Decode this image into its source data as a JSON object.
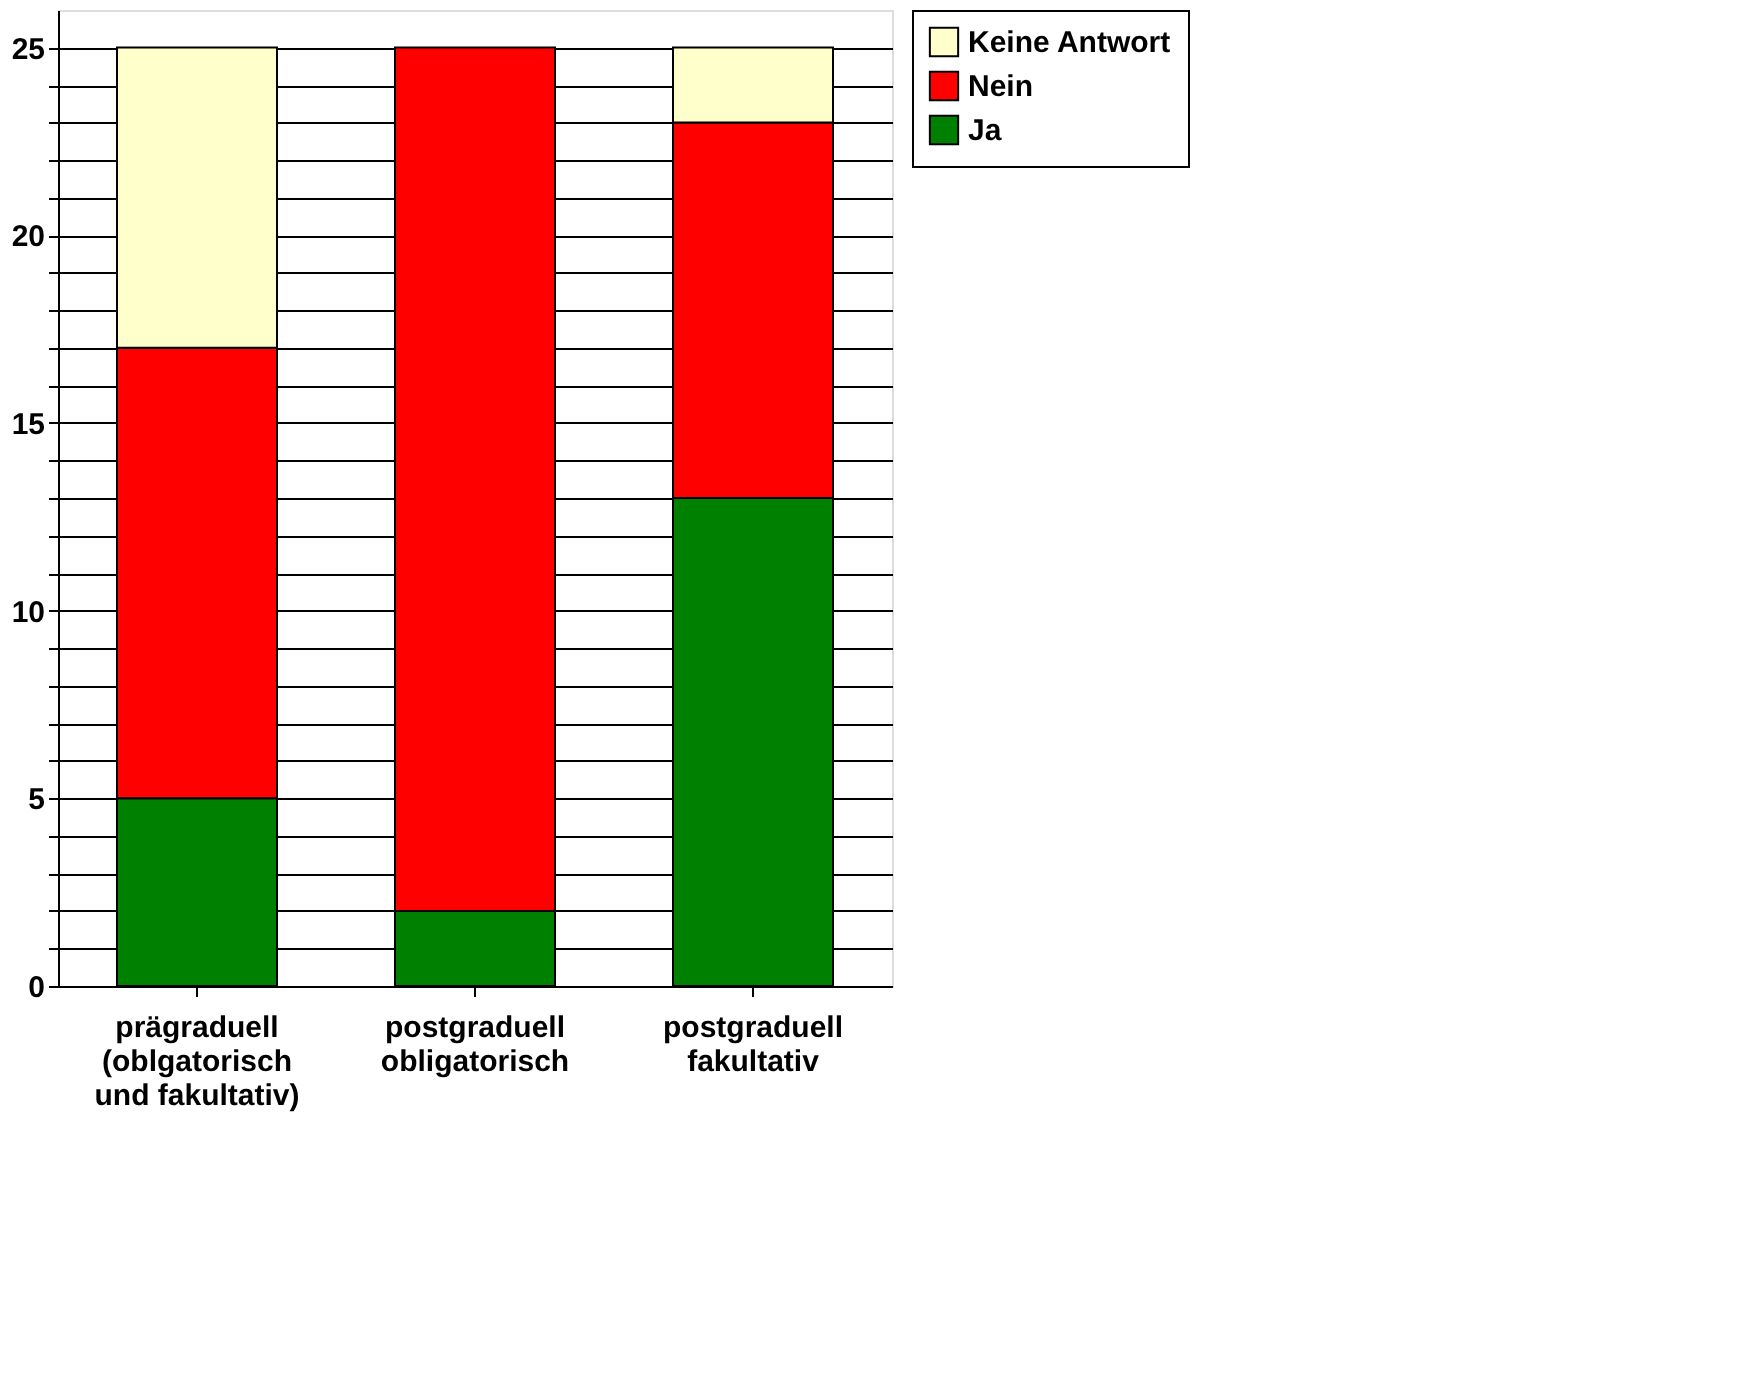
{
  "chart_data": {
    "type": "bar",
    "stacked": true,
    "categories": [
      "prägraduell (oblgatorisch und fakultativ)",
      "postgraduell obligatorisch",
      "postgraduell fakultativ"
    ],
    "series": [
      {
        "name": "Ja",
        "color": "#008000",
        "values": [
          5,
          2,
          13
        ]
      },
      {
        "name": "Nein",
        "color": "#ff0000",
        "values": [
          12,
          23,
          10
        ]
      },
      {
        "name": "Keine Antwort",
        "color": "#ffffcc",
        "values": [
          8,
          0,
          2
        ]
      }
    ],
    "ylim": [
      0,
      26
    ],
    "yticks": [
      0,
      {
        "value": 1,
        "label": null
      },
      {
        "value": 2,
        "label": null
      },
      {
        "value": 3,
        "label": null
      },
      {
        "value": 4,
        "label": null
      },
      5,
      {
        "value": 6,
        "label": null
      },
      {
        "value": 7,
        "label": null
      },
      {
        "value": 8,
        "label": null
      },
      {
        "value": 9,
        "label": null
      },
      10,
      {
        "value": 11,
        "label": null
      },
      {
        "value": 12,
        "label": null
      },
      {
        "value": 13,
        "label": null
      },
      {
        "value": 14,
        "label": null
      },
      15,
      {
        "value": 16,
        "label": null
      },
      {
        "value": 17,
        "label": null
      },
      {
        "value": 18,
        "label": null
      },
      {
        "value": 19,
        "label": null
      },
      20,
      {
        "value": 21,
        "label": null
      },
      {
        "value": 22,
        "label": null
      },
      {
        "value": 23,
        "label": null
      },
      {
        "value": 24,
        "label": null
      },
      25
    ],
    "grid": "y",
    "legend": "top right"
  }
}
